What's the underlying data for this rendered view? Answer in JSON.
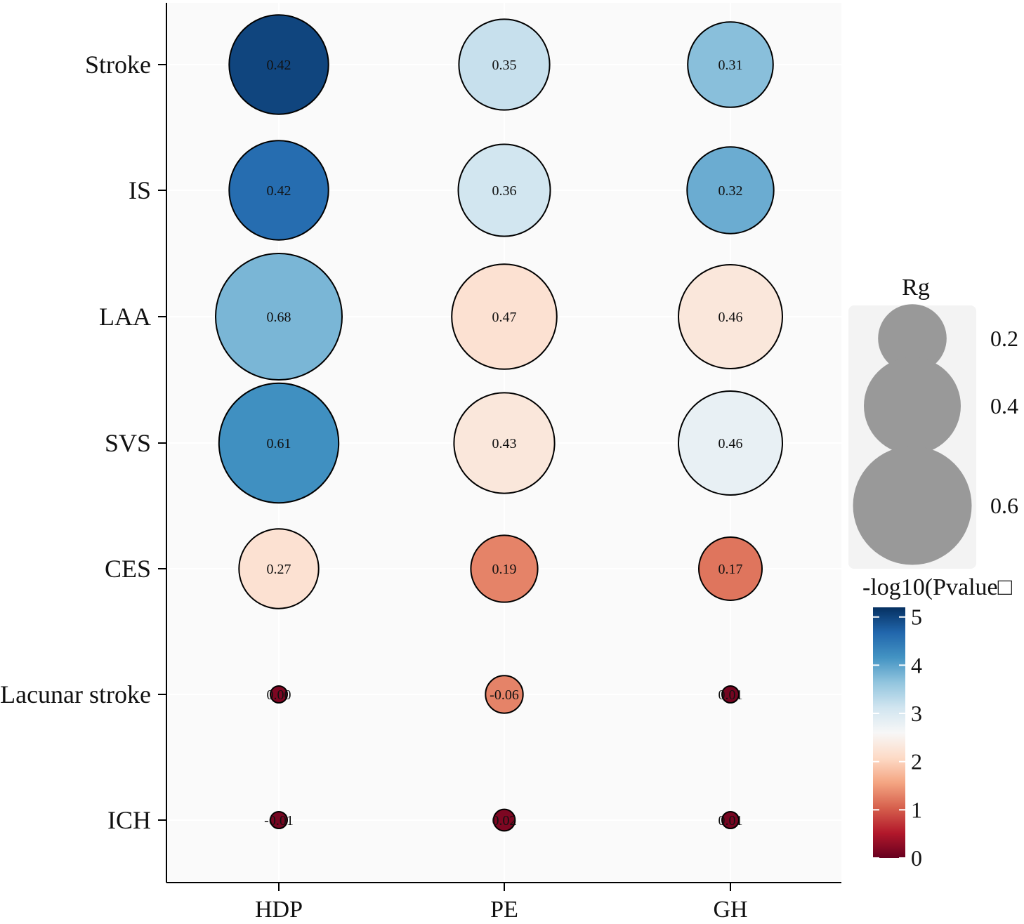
{
  "chart_data": {
    "type": "bubble-matrix",
    "columns": [
      "HDP",
      "PE",
      "GH"
    ],
    "rows": [
      "Stroke",
      "IS",
      "LAA",
      "SVS",
      "CES",
      "Lacunar stroke",
      "ICH"
    ],
    "rg_values": [
      [
        0.42,
        0.35,
        0.31
      ],
      [
        0.42,
        0.36,
        0.32
      ],
      [
        0.68,
        0.47,
        0.46
      ],
      [
        0.61,
        0.43,
        0.46
      ],
      [
        0.27,
        0.19,
        0.17
      ],
      [
        0.0,
        -0.06,
        0.01
      ],
      [
        -0.01,
        0.02,
        0.01
      ]
    ],
    "rg_labels": [
      [
        "0.42",
        "0.35",
        "0.31"
      ],
      [
        "0.42",
        "0.36",
        "0.32"
      ],
      [
        "0.68",
        "0.47",
        "0.46"
      ],
      [
        "0.61",
        "0.43",
        "0.46"
      ],
      [
        "0.27",
        "0.19",
        "0.17"
      ],
      [
        "0.00",
        "-0.06",
        "0.01"
      ],
      [
        "-0.01",
        "0.02",
        "0.01"
      ]
    ],
    "neglog10_p": [
      [
        5.0,
        3.2,
        3.7
      ],
      [
        4.6,
        3.1,
        3.9
      ],
      [
        3.8,
        2.2,
        2.3
      ],
      [
        4.2,
        2.3,
        2.8
      ],
      [
        2.2,
        1.3,
        1.2
      ],
      [
        0.15,
        1.3,
        0.1
      ],
      [
        0.1,
        0.15,
        0.1
      ]
    ],
    "size_legend": {
      "title": "Rg",
      "values": [
        0.2,
        0.4,
        0.6
      ],
      "labels": [
        "0.2",
        "0.4",
        "0.6"
      ]
    },
    "color_legend": {
      "title": "-log10(Pvalue□",
      "range": [
        0,
        5.2
      ],
      "ticks": [
        0,
        1,
        2,
        3,
        4,
        5
      ],
      "tick_labels": [
        "0",
        "1",
        "2",
        "3",
        "4",
        "5"
      ]
    },
    "colors": {
      "scale": [
        "#67001f",
        "#b2182b",
        "#d6604d",
        "#f4a582",
        "#fddbc7",
        "#f7f7f7",
        "#d1e5f0",
        "#92c5de",
        "#4393c3",
        "#2166ac",
        "#053061"
      ],
      "panel_background": "#fafafa",
      "legend_background": "#f3f3f3",
      "size_key_fill": "#999999"
    }
  }
}
